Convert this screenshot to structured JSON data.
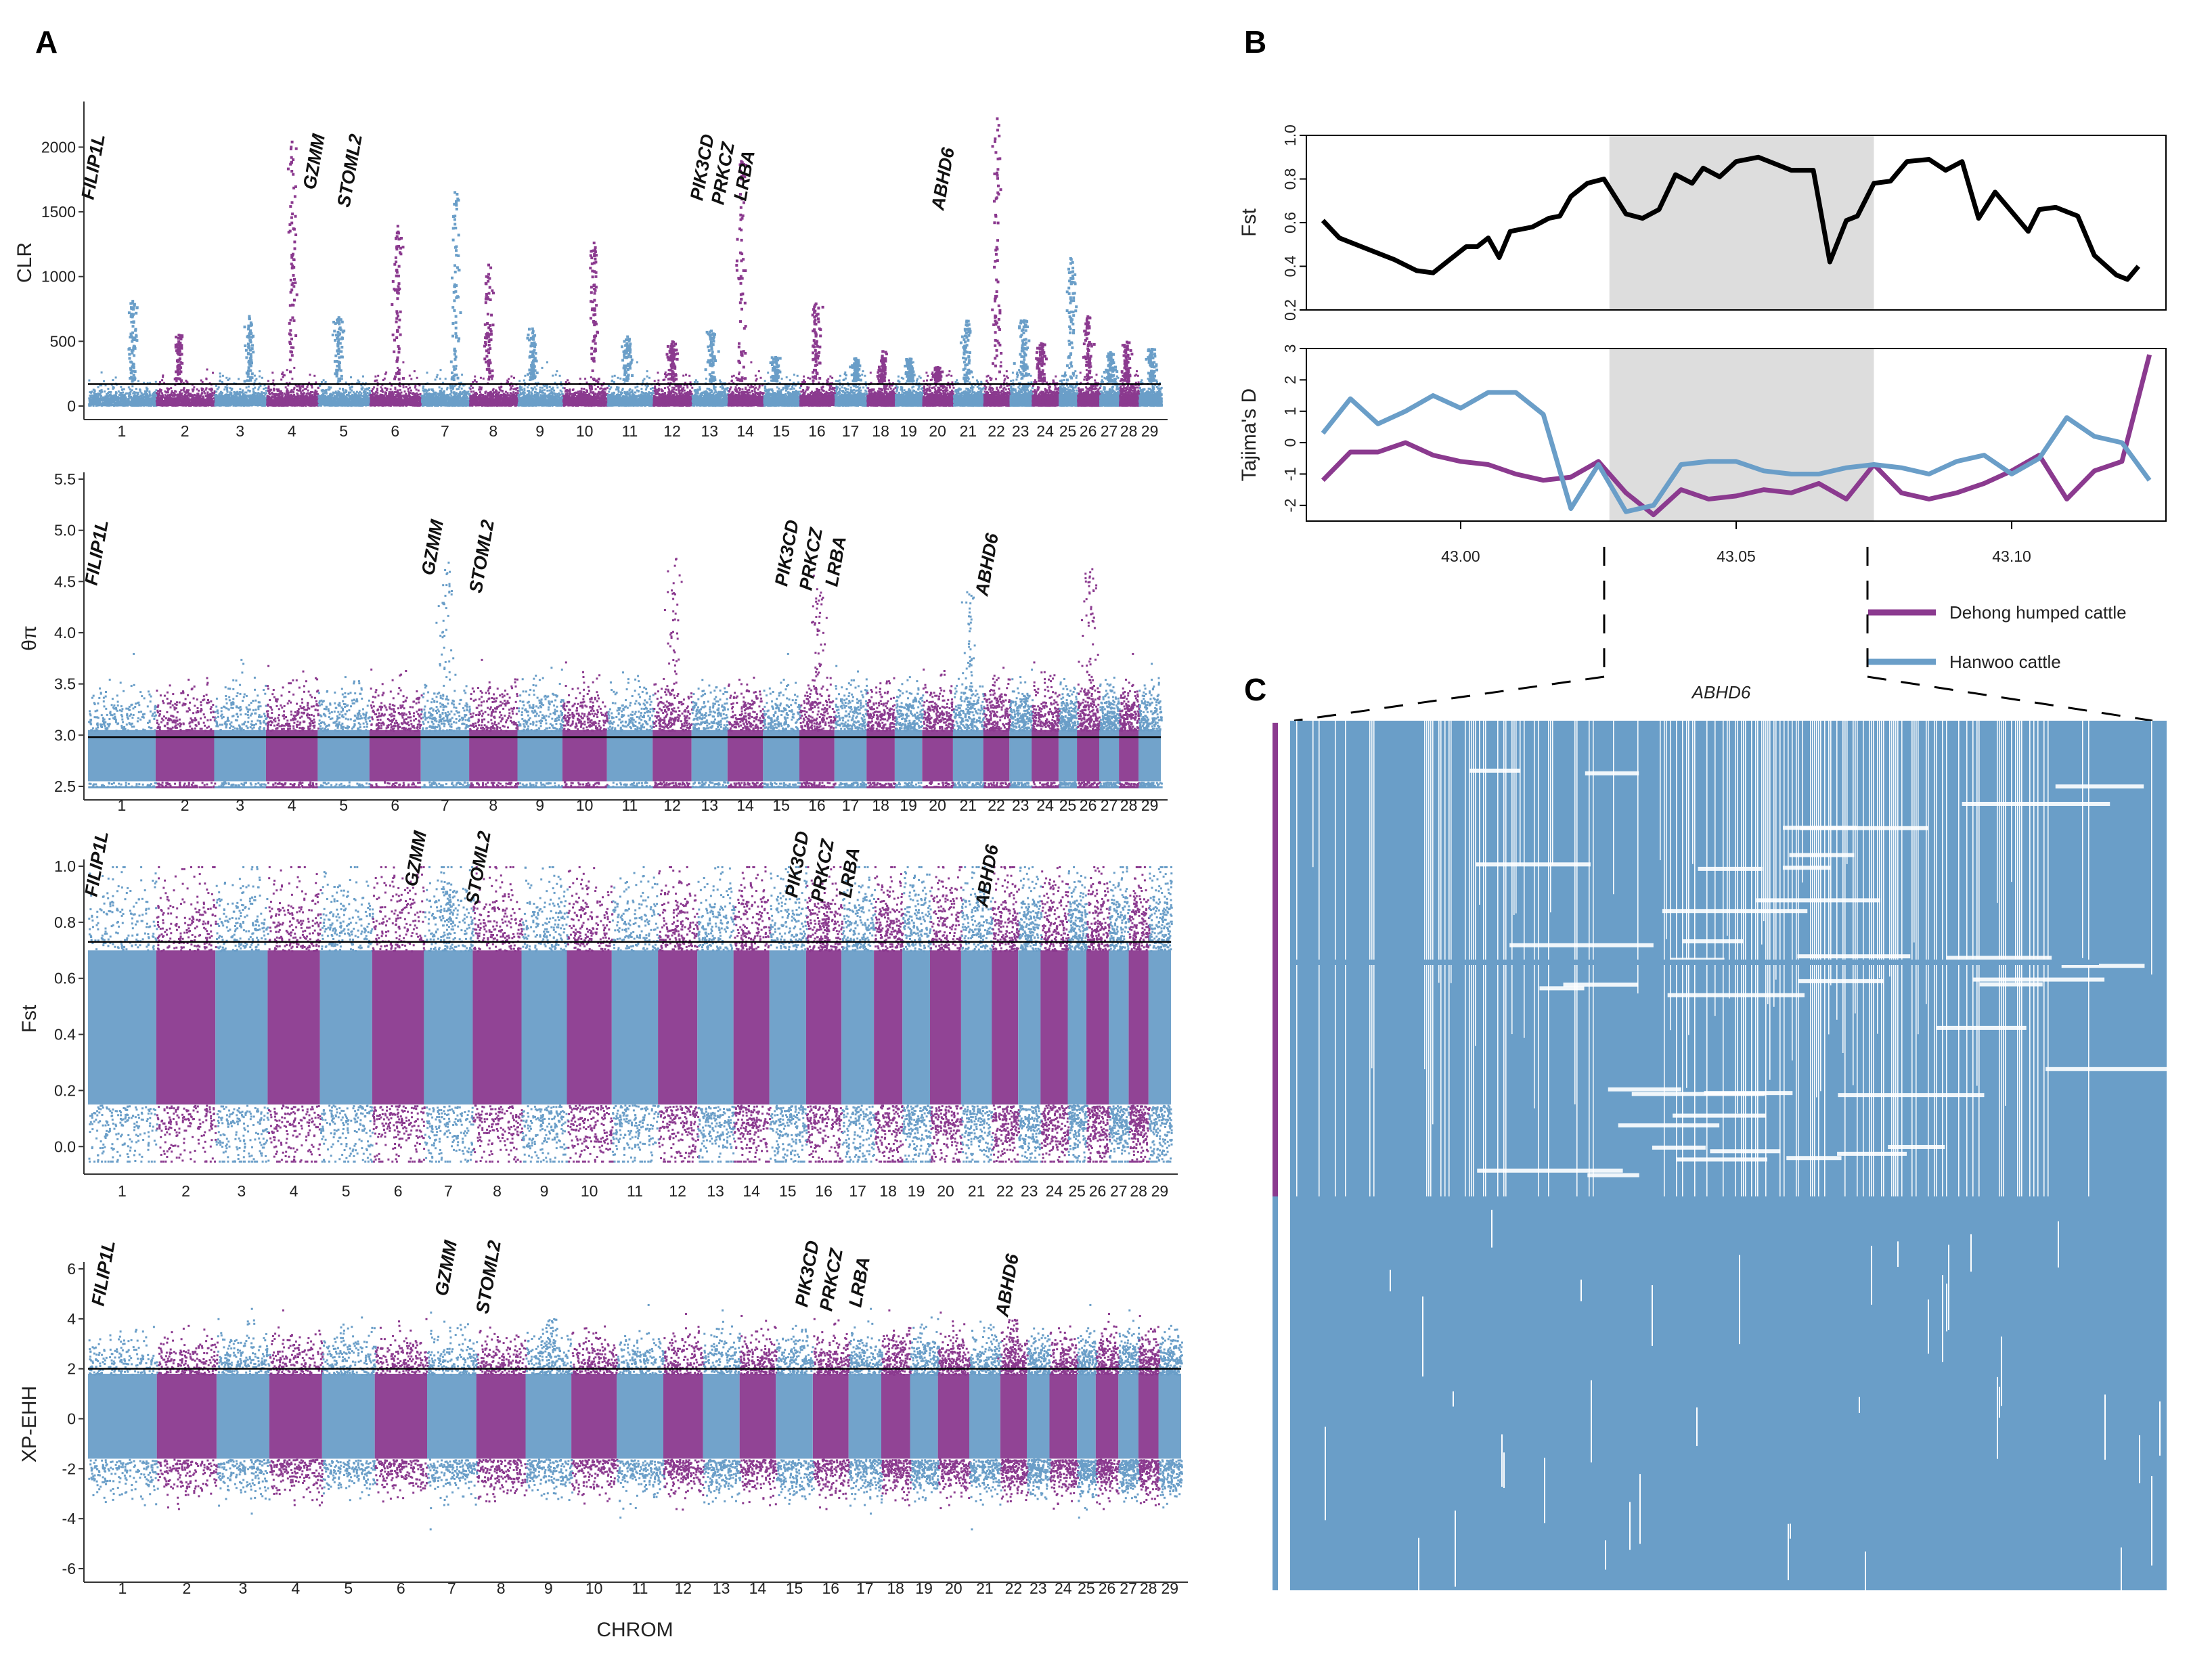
{
  "panel_labels": {
    "a": "A",
    "b": "B",
    "c": "C"
  },
  "colors": {
    "purple": "#8B3A8F",
    "blue": "#6A9EC8",
    "black": "#000000",
    "shade": "#DDDDDD"
  },
  "chart_data": [
    {
      "id": "clr",
      "type": "scatter",
      "subtype": "manhattan",
      "ylabel": "CLR",
      "xlabel": "",
      "ylim": [
        0,
        2300
      ],
      "yticks": [
        0,
        500,
        1000,
        1500,
        2000
      ],
      "threshold": 170,
      "chromosomes": [
        "1",
        "2",
        "3",
        "4",
        "5",
        "6",
        "7",
        "8",
        "9",
        "10",
        "11",
        "12",
        "13",
        "14",
        "15",
        "16",
        "17",
        "18",
        "19",
        "20",
        "21",
        "22",
        "23",
        "24",
        "25",
        "26",
        "27",
        "28",
        "29"
      ],
      "genes": [
        "FILIP1L",
        "GZMM",
        "STOML2",
        "PIK3CD",
        "PRKCZ",
        "LRBA",
        "ABHD6"
      ],
      "peaks": [
        {
          "chrom": 1,
          "value": 820
        },
        {
          "chrom": 4,
          "value": 2050
        },
        {
          "chrom": 6,
          "value": 1400
        },
        {
          "chrom": 7,
          "value": 1660
        },
        {
          "chrom": 8,
          "value": 1100
        },
        {
          "chrom": 10,
          "value": 1270
        },
        {
          "chrom": 14,
          "value": 1900
        },
        {
          "chrom": 16,
          "value": 800
        },
        {
          "chrom": 22,
          "value": 2230
        },
        {
          "chrom": 25,
          "value": 1150
        }
      ]
    },
    {
      "id": "theta",
      "type": "scatter",
      "subtype": "manhattan",
      "ylabel": "θπ",
      "xlabel": "",
      "ylim": [
        2.5,
        5.5
      ],
      "yticks": [
        2.5,
        3.0,
        3.5,
        4.0,
        4.5,
        5.0,
        5.5
      ],
      "threshold": 2.98,
      "chromosomes": [
        "1",
        "2",
        "3",
        "4",
        "5",
        "6",
        "7",
        "8",
        "9",
        "10",
        "11",
        "12",
        "13",
        "14",
        "15",
        "16",
        "17",
        "18",
        "19",
        "20",
        "21",
        "22",
        "23",
        "24",
        "25",
        "26",
        "27",
        "28",
        "29"
      ],
      "genes": [
        "FILIP1L",
        "GZMM",
        "STOML2",
        "PIK3CD",
        "PRKCZ",
        "LRBA",
        "ABHD6"
      ],
      "peaks": [
        {
          "chrom": 7,
          "value": 4.7
        },
        {
          "chrom": 12,
          "value": 4.75
        },
        {
          "chrom": 16,
          "value": 4.6
        },
        {
          "chrom": 21,
          "value": 4.45
        },
        {
          "chrom": 26,
          "value": 4.65
        }
      ]
    },
    {
      "id": "fst",
      "type": "scatter",
      "subtype": "manhattan",
      "ylabel": "Fst",
      "xlabel": "",
      "ylim": [
        -0.05,
        1.0
      ],
      "yticks": [
        0.0,
        0.2,
        0.4,
        0.6,
        0.8,
        1.0
      ],
      "threshold": 0.73,
      "chromosomes": [
        "1",
        "2",
        "3",
        "4",
        "5",
        "6",
        "7",
        "8",
        "9",
        "10",
        "11",
        "12",
        "13",
        "14",
        "15",
        "16",
        "17",
        "18",
        "19",
        "20",
        "21",
        "22",
        "23",
        "24",
        "25",
        "26",
        "27",
        "28",
        "29"
      ],
      "genes": [
        "FILIP1L",
        "GZMM",
        "STOML2",
        "PIK3CD",
        "PRKCZ",
        "LRBA",
        "ABHD6"
      ],
      "peaks": [
        {
          "chrom": 7,
          "value": 0.95
        },
        {
          "chrom": 16,
          "value": 0.88
        }
      ]
    },
    {
      "id": "xpehh",
      "type": "scatter",
      "subtype": "manhattan",
      "ylabel": "XP-EHH",
      "xlabel": "CHROM",
      "ylim": [
        -6,
        6
      ],
      "yticks": [
        -6,
        -4,
        -2,
        0,
        2,
        4,
        6
      ],
      "threshold": 2.0,
      "chromosomes": [
        "1",
        "2",
        "3",
        "4",
        "5",
        "6",
        "7",
        "8",
        "9",
        "10",
        "11",
        "12",
        "13",
        "14",
        "15",
        "16",
        "17",
        "18",
        "19",
        "20",
        "21",
        "22",
        "23",
        "24",
        "25",
        "26",
        "27",
        "28",
        "29"
      ],
      "genes": [
        "FILIP1L",
        "GZMM",
        "STOML2",
        "PIK3CD",
        "PRKCZ",
        "LRBA",
        "ABHD6"
      ],
      "peaks": [
        {
          "chrom": 9,
          "value": 4.1
        },
        {
          "chrom": 22,
          "value": 4.0
        }
      ]
    },
    {
      "id": "b_fst",
      "type": "line",
      "ylabel": "Fst",
      "ylim": [
        0.2,
        1.0
      ],
      "yticks": [
        0.2,
        0.4,
        0.6,
        0.8,
        1.0
      ],
      "xlim": [
        42.972,
        43.128
      ],
      "x": [
        42.975,
        42.978,
        42.983,
        42.988,
        42.992,
        42.995,
        42.998,
        43.001,
        43.003,
        43.005,
        43.007,
        43.009,
        43.011,
        43.013,
        43.016,
        43.018,
        43.02,
        43.023,
        43.026,
        43.03,
        43.033,
        43.036,
        43.039,
        43.042,
        43.044,
        43.047,
        43.05,
        43.054,
        43.057,
        43.06,
        43.064,
        43.067,
        43.07,
        43.072,
        43.075,
        43.078,
        43.081,
        43.085,
        43.088,
        43.091,
        43.094,
        43.097,
        43.1,
        43.103,
        43.105,
        43.108,
        43.112,
        43.115,
        43.119,
        43.121,
        43.123
      ],
      "series": [
        {
          "name": "Fst",
          "values": [
            0.61,
            0.53,
            0.48,
            0.43,
            0.38,
            0.37,
            0.43,
            0.49,
            0.49,
            0.53,
            0.44,
            0.56,
            0.57,
            0.58,
            0.62,
            0.63,
            0.72,
            0.78,
            0.8,
            0.64,
            0.62,
            0.66,
            0.82,
            0.78,
            0.85,
            0.81,
            0.88,
            0.9,
            0.87,
            0.84,
            0.84,
            0.42,
            0.61,
            0.63,
            0.78,
            0.79,
            0.88,
            0.89,
            0.84,
            0.88,
            0.62,
            0.74,
            0.65,
            0.56,
            0.66,
            0.67,
            0.63,
            0.45,
            0.36,
            0.34,
            0.4
          ]
        }
      ]
    },
    {
      "id": "b_tajima",
      "type": "line",
      "ylabel": "Tajima's D",
      "xlabel": "",
      "ylim": [
        -2.5,
        3.0
      ],
      "yticks": [
        -2,
        -1,
        0,
        1,
        2,
        3
      ],
      "xlim": [
        42.972,
        43.128
      ],
      "xticks": [
        43.0,
        43.05,
        43.1
      ],
      "xticklabels": [
        "43.00",
        "43.05",
        "43.10"
      ],
      "highlight": [
        43.027,
        43.075
      ],
      "x": [
        42.975,
        42.98,
        42.985,
        42.99,
        42.995,
        43.0,
        43.005,
        43.01,
        43.015,
        43.02,
        43.025,
        43.03,
        43.035,
        43.04,
        43.045,
        43.05,
        43.055,
        43.06,
        43.065,
        43.07,
        43.075,
        43.08,
        43.085,
        43.09,
        43.095,
        43.1,
        43.105,
        43.11,
        43.115,
        43.12,
        43.125
      ],
      "series": [
        {
          "name": "Dehong humped cattle",
          "color": "#8B3A8F",
          "values": [
            -1.2,
            -0.3,
            -0.3,
            0.0,
            -0.4,
            -0.6,
            -0.7,
            -1.0,
            -1.2,
            -1.1,
            -0.6,
            -1.6,
            -2.3,
            -1.5,
            -1.8,
            -1.7,
            -1.5,
            -1.6,
            -1.3,
            -1.8,
            -0.7,
            -1.6,
            -1.8,
            -1.6,
            -1.3,
            -0.9,
            -0.4,
            -1.8,
            -0.9,
            -0.6,
            2.8
          ]
        },
        {
          "name": "Hanwoo cattle",
          "color": "#6A9EC8",
          "values": [
            0.3,
            1.4,
            0.6,
            1.0,
            1.5,
            1.1,
            1.6,
            1.6,
            0.9,
            -2.1,
            -0.7,
            -2.2,
            -2.0,
            -0.7,
            -0.6,
            -0.6,
            -0.9,
            -1.0,
            -1.0,
            -0.8,
            -0.7,
            -0.8,
            -1.0,
            -0.6,
            -0.4,
            -1.0,
            -0.5,
            0.8,
            0.2,
            0.0,
            -1.2
          ]
        }
      ]
    }
  ],
  "legend": [
    {
      "label": "Dehong humped cattle",
      "color": "#8B3A8F"
    },
    {
      "label": "Hanwoo cattle",
      "color": "#6A9EC8"
    }
  ],
  "haplotype": {
    "gene_label": "ABHD6",
    "groups": [
      {
        "name": "Dehong humped cattle",
        "color": "#8B3A8F"
      },
      {
        "name": "Hanwoo cattle",
        "color": "#6A9EC8"
      }
    ]
  }
}
